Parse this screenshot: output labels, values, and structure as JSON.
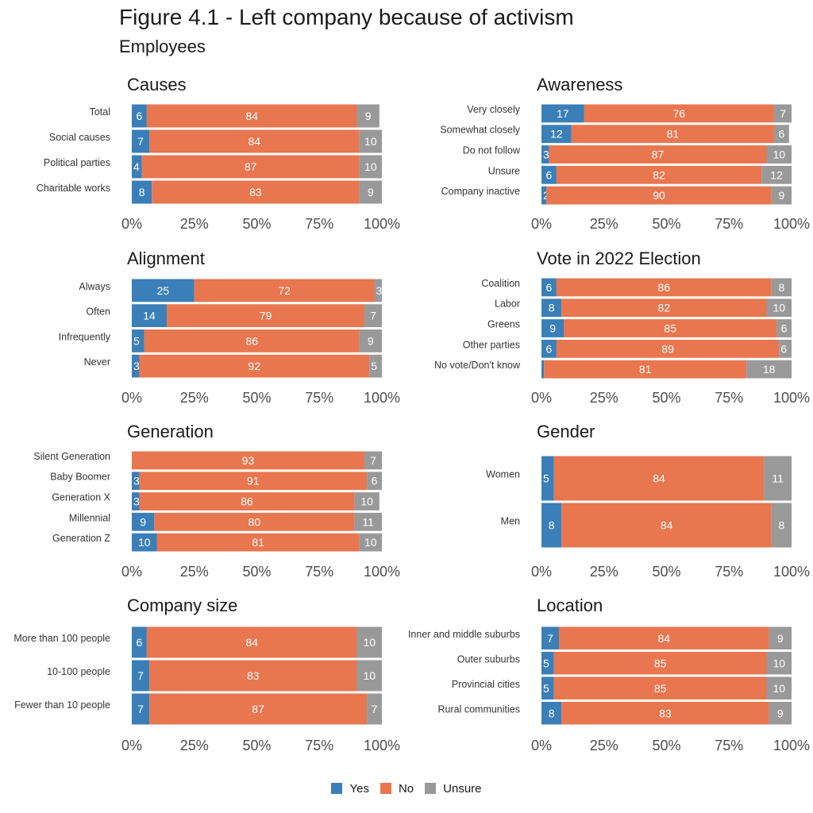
{
  "figure": {
    "title": "Figure 4.1 - Left company because of activism",
    "subtitle": "Employees"
  },
  "colors": {
    "yes": "#3a7fb8",
    "no": "#e8764f",
    "unsure": "#999999"
  },
  "legend": [
    {
      "key": "yes",
      "label": "Yes"
    },
    {
      "key": "no",
      "label": "No"
    },
    {
      "key": "unsure",
      "label": "Unsure"
    }
  ],
  "chart_data": [
    {
      "type": "bar",
      "orientation": "horizontal",
      "stacked": true,
      "title": "Causes",
      "categories": [
        "Total",
        "Social causes",
        "Political parties",
        "Charitable works"
      ],
      "series": [
        {
          "name": "Yes",
          "values": [
            6,
            7,
            4,
            8
          ]
        },
        {
          "name": "No",
          "values": [
            84,
            84,
            87,
            83
          ]
        },
        {
          "name": "Unsure",
          "values": [
            9,
            10,
            10,
            9
          ]
        }
      ],
      "xlim": [
        0,
        100
      ],
      "xticks": [
        "0%",
        "25%",
        "50%",
        "75%",
        "100%"
      ],
      "grid": false
    },
    {
      "type": "bar",
      "orientation": "horizontal",
      "stacked": true,
      "title": "Awareness",
      "categories": [
        "Very closely",
        "Somewhat closely",
        "Do not follow",
        "Unsure",
        "Company inactive"
      ],
      "series": [
        {
          "name": "Yes",
          "values": [
            17,
            12,
            3,
            6,
            2
          ]
        },
        {
          "name": "No",
          "values": [
            76,
            81,
            87,
            82,
            90
          ]
        },
        {
          "name": "Unsure",
          "values": [
            7,
            6,
            10,
            12,
            9
          ]
        }
      ],
      "xlim": [
        0,
        100
      ],
      "xticks": [
        "0%",
        "25%",
        "50%",
        "75%",
        "100%"
      ],
      "grid": false
    },
    {
      "type": "bar",
      "orientation": "horizontal",
      "stacked": true,
      "title": "Alignment",
      "categories": [
        "Always",
        "Often",
        "Infrequently",
        "Never"
      ],
      "series": [
        {
          "name": "Yes",
          "values": [
            25,
            14,
            5,
            3
          ]
        },
        {
          "name": "No",
          "values": [
            72,
            79,
            86,
            92
          ]
        },
        {
          "name": "Unsure",
          "values": [
            3,
            7,
            9,
            5
          ]
        }
      ],
      "xlim": [
        0,
        100
      ],
      "xticks": [
        "0%",
        "25%",
        "50%",
        "75%",
        "100%"
      ],
      "grid": false
    },
    {
      "type": "bar",
      "orientation": "horizontal",
      "stacked": true,
      "title": "Vote in 2022 Election",
      "categories": [
        "Coalition",
        "Labor",
        "Greens",
        "Other parties",
        "No vote/Don't know"
      ],
      "series": [
        {
          "name": "Yes",
          "values": [
            6,
            8,
            9,
            6,
            1
          ]
        },
        {
          "name": "No",
          "values": [
            86,
            82,
            85,
            89,
            81
          ]
        },
        {
          "name": "Unsure",
          "values": [
            8,
            10,
            6,
            6,
            18
          ]
        }
      ],
      "xlim": [
        0,
        100
      ],
      "xticks": [
        "0%",
        "25%",
        "50%",
        "75%",
        "100%"
      ],
      "grid": false
    },
    {
      "type": "bar",
      "orientation": "horizontal",
      "stacked": true,
      "title": "Generation",
      "categories": [
        "Silent Generation",
        "Baby Boomer",
        "Generation X",
        "Millennial",
        "Generation Z"
      ],
      "series": [
        {
          "name": "Yes",
          "values": [
            0,
            3,
            3,
            9,
            10
          ]
        },
        {
          "name": "No",
          "values": [
            93,
            91,
            86,
            80,
            81
          ]
        },
        {
          "name": "Unsure",
          "values": [
            7,
            6,
            10,
            11,
            10
          ]
        }
      ],
      "xlim": [
        0,
        100
      ],
      "xticks": [
        "0%",
        "25%",
        "50%",
        "75%",
        "100%"
      ],
      "grid": false
    },
    {
      "type": "bar",
      "orientation": "horizontal",
      "stacked": true,
      "title": "Gender",
      "categories": [
        "Women",
        "Men"
      ],
      "series": [
        {
          "name": "Yes",
          "values": [
            5,
            8
          ]
        },
        {
          "name": "No",
          "values": [
            84,
            84
          ]
        },
        {
          "name": "Unsure",
          "values": [
            11,
            8
          ]
        }
      ],
      "xlim": [
        0,
        100
      ],
      "xticks": [
        "0%",
        "25%",
        "50%",
        "75%",
        "100%"
      ],
      "grid": false
    },
    {
      "type": "bar",
      "orientation": "horizontal",
      "stacked": true,
      "title": "Company size",
      "categories": [
        "More than 100 people",
        "10-100 people",
        "Fewer than 10 people"
      ],
      "series": [
        {
          "name": "Yes",
          "values": [
            6,
            7,
            7
          ]
        },
        {
          "name": "No",
          "values": [
            84,
            83,
            87
          ]
        },
        {
          "name": "Unsure",
          "values": [
            10,
            10,
            7
          ]
        }
      ],
      "xlim": [
        0,
        100
      ],
      "xticks": [
        "0%",
        "25%",
        "50%",
        "75%",
        "100%"
      ],
      "grid": false
    },
    {
      "type": "bar",
      "orientation": "horizontal",
      "stacked": true,
      "title": "Location",
      "categories": [
        "Inner and middle suburbs",
        "Outer suburbs",
        "Provincial cities",
        "Rural communities"
      ],
      "series": [
        {
          "name": "Yes",
          "values": [
            7,
            5,
            5,
            8
          ]
        },
        {
          "name": "No",
          "values": [
            84,
            85,
            85,
            83
          ]
        },
        {
          "name": "Unsure",
          "values": [
            9,
            10,
            10,
            9
          ]
        }
      ],
      "xlim": [
        0,
        100
      ],
      "xticks": [
        "0%",
        "25%",
        "50%",
        "75%",
        "100%"
      ],
      "grid": false
    }
  ]
}
